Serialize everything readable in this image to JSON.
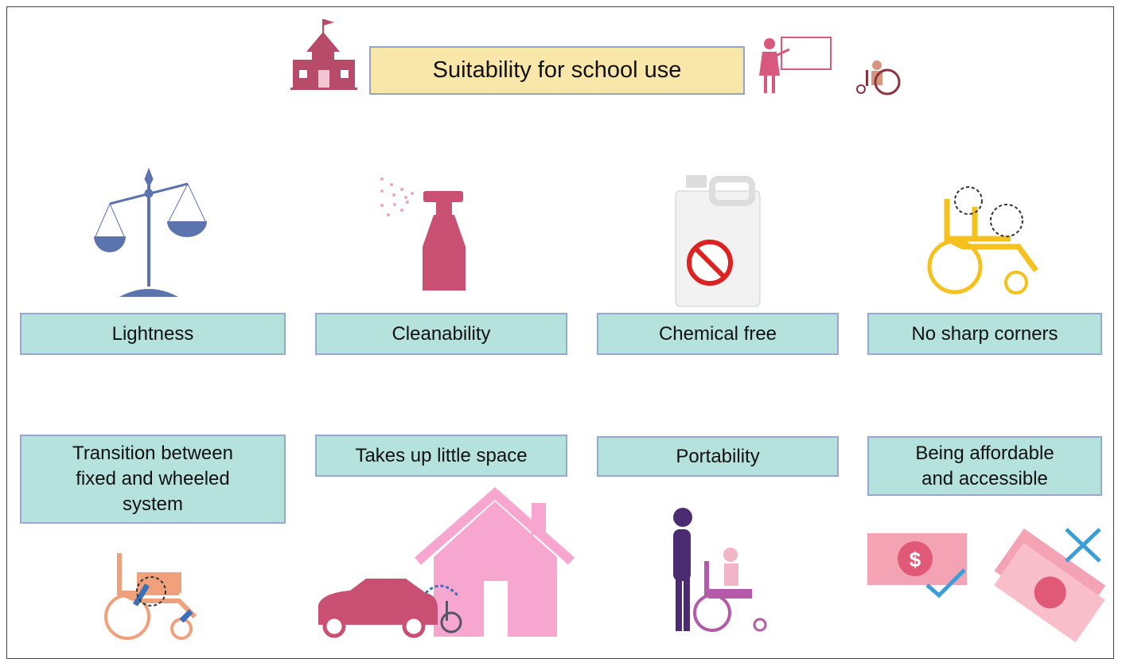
{
  "header": {
    "title": "Suitability for school use"
  },
  "items": [
    {
      "label": "Lightness"
    },
    {
      "label": "Cleanability"
    },
    {
      "label": "Chemical free"
    },
    {
      "label": "No sharp corners"
    },
    {
      "label": "Transition between fixed and wheeled system"
    },
    {
      "label": "Takes up little space"
    },
    {
      "label": "Portability"
    },
    {
      "label": "Being affordable and accessible"
    }
  ]
}
